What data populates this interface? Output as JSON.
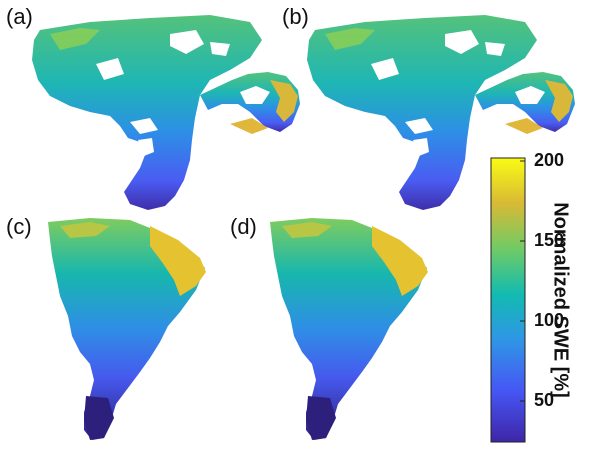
{
  "panels": [
    {
      "label": "(a)"
    },
    {
      "label": "(b)"
    },
    {
      "label": "(c)"
    },
    {
      "label": "(d)"
    }
  ],
  "colorbar": {
    "title": "Normalized SWE [%]",
    "ticks": [
      "200",
      "150",
      "100",
      "50"
    ],
    "colormap": [
      "#3e26a8",
      "#4656f4",
      "#2f96e6",
      "#12bbb0",
      "#70cb65",
      "#d8b935",
      "#f9fb14"
    ]
  }
}
